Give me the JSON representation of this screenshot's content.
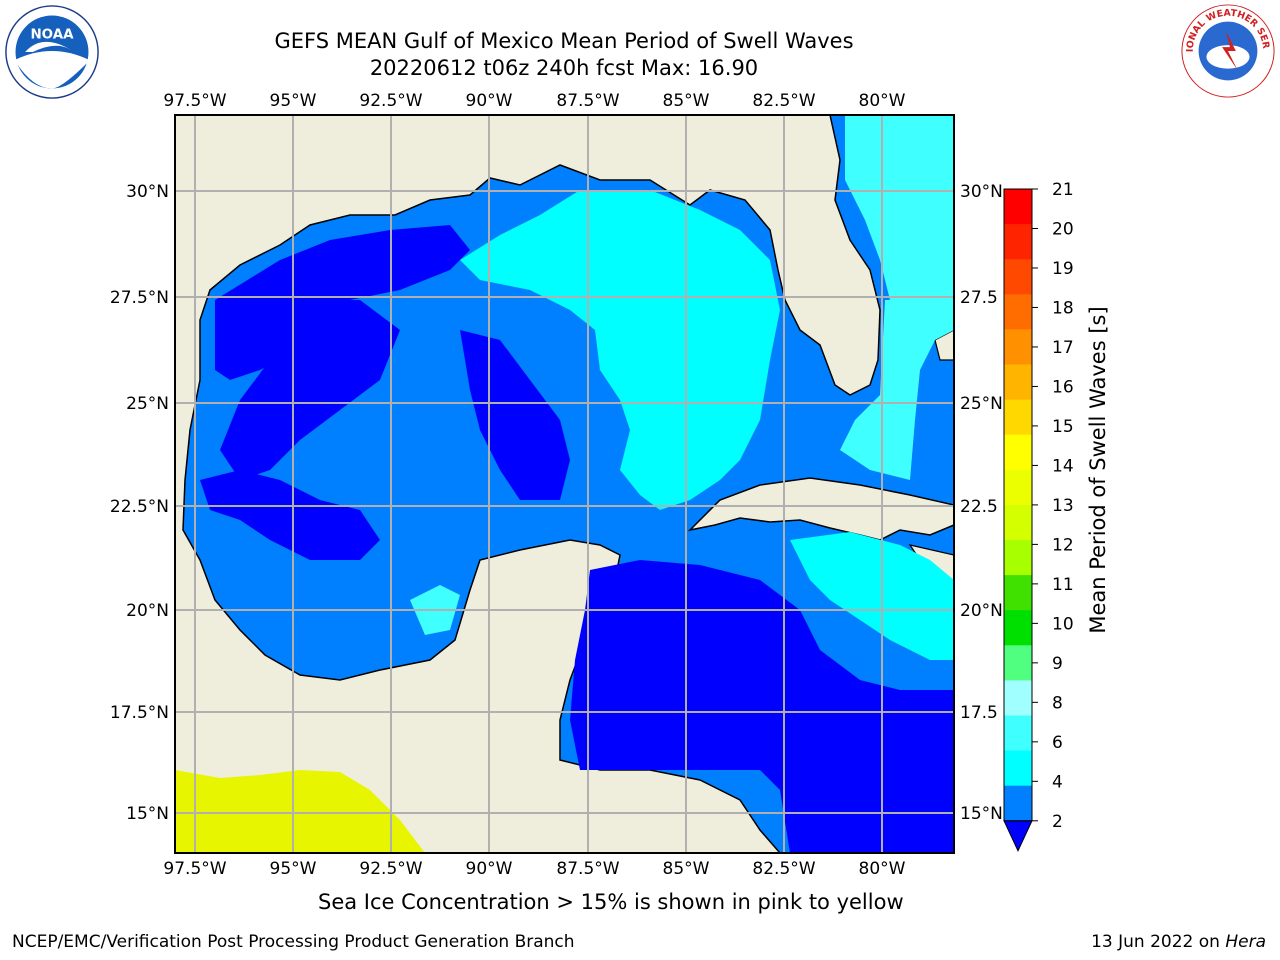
{
  "title": {
    "line1": "GEFS MEAN Gulf of Mexico Mean Period of Swell Waves",
    "line2": "20220612 t06z 240h fcst   Max: 16.90"
  },
  "logos": {
    "left": "noaa-logo",
    "right": "nws-logo",
    "right_text": "NATIONAL WEATHER SERVICE"
  },
  "map": {
    "lon_labels": [
      "97.5°W",
      "95°W",
      "92.5°W",
      "90°W",
      "87.5°W",
      "85°W",
      "82.5°W",
      "80°W"
    ],
    "lat_labels_left": [
      "30°N",
      "27.5°N",
      "25°N",
      "22.5°N",
      "20°N",
      "17.5°N",
      "15°N"
    ],
    "lat_labels_right": [
      "30°N",
      "27.5",
      "25°N",
      "22.5",
      "20°N",
      "17.5",
      "15°N"
    ],
    "colors": {
      "land": "#efeedc",
      "swell_2_4": "#0000ff",
      "swell_4_6": "#0080ff",
      "swell_6_8": "#00ffff",
      "swell_8_9": "#40ffff",
      "ice_yellow": "#ffff00"
    }
  },
  "colorbar": {
    "label": "Mean Period of Swell Waves [s]",
    "ticks": [
      "21",
      "20",
      "19",
      "18",
      "17",
      "16",
      "15",
      "14",
      "13",
      "12",
      "11",
      "10",
      "9",
      "8",
      "6",
      "4",
      "2"
    ],
    "colors": [
      "#ff0000",
      "#ff2400",
      "#ff4800",
      "#ff6c00",
      "#ff9000",
      "#ffb400",
      "#ffd800",
      "#ffff00",
      "#ecff00",
      "#d4ff00",
      "#a8ff00",
      "#40e000",
      "#00e000",
      "#50ff80",
      "#a0ffff",
      "#40ffff",
      "#00ffff",
      "#0080ff"
    ],
    "under_color": "#0000ff"
  },
  "caption": "Sea Ice Concentration > 15% is shown in pink to yellow",
  "footer": {
    "left": "NCEP/EMC/Verification Post Processing Product Generation Branch",
    "right_date": "13 Jun 2022 on ",
    "right_host": "Hera"
  }
}
